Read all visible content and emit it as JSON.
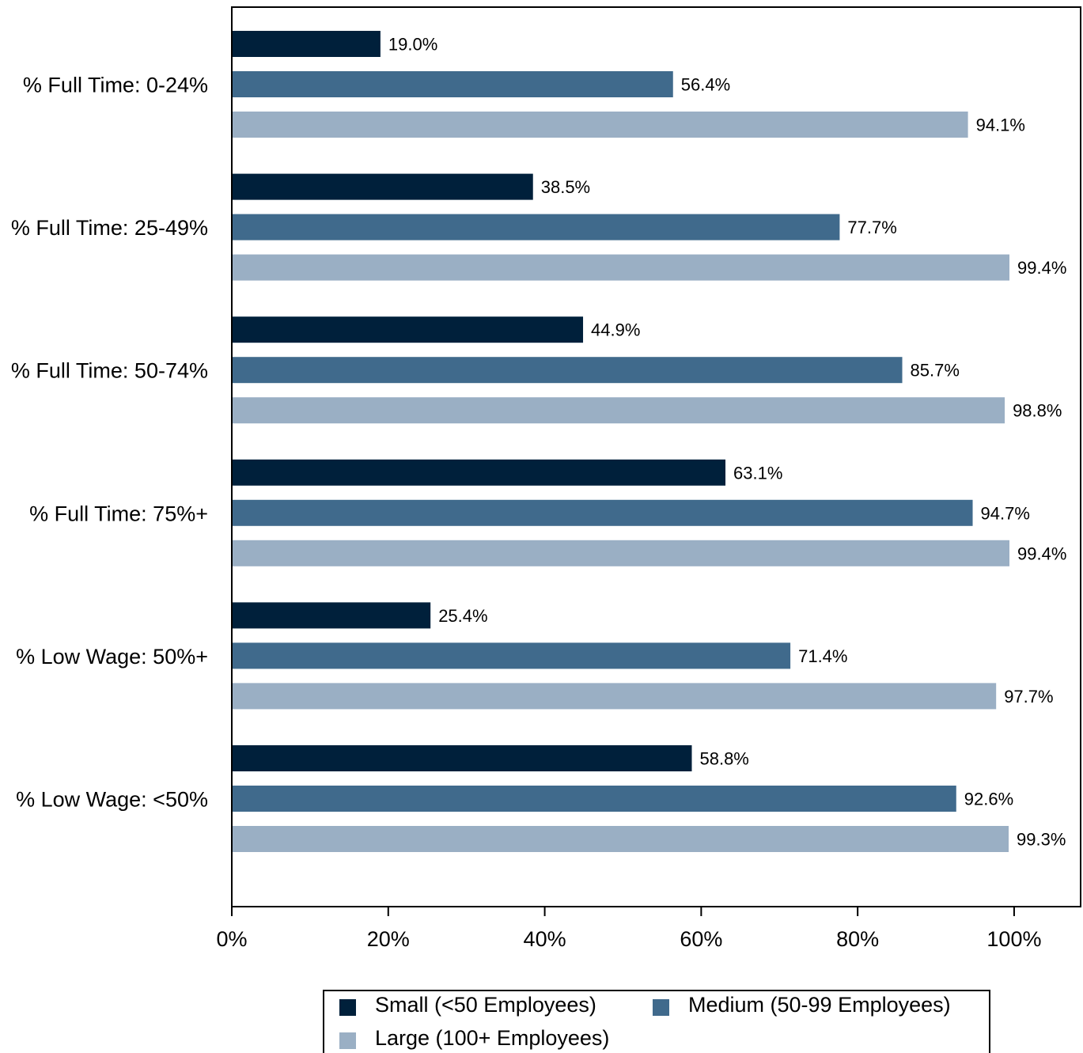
{
  "chart_data": {
    "type": "bar",
    "orientation": "horizontal",
    "categories": [
      "% Full Time: 0-24%",
      "% Full Time: 25-49%",
      "% Full Time: 50-74%",
      "% Full Time: 75%+",
      "% Low Wage: 50%+",
      "% Low Wage: <50%"
    ],
    "series": [
      {
        "name": "Small (<50 Employees)",
        "color": "#00203b",
        "values": [
          19.0,
          38.5,
          44.9,
          63.1,
          25.4,
          58.8
        ],
        "labels": [
          "19.0%",
          "38.5%",
          "44.9%",
          "63.1%",
          "25.4%",
          "58.8%"
        ]
      },
      {
        "name": "Medium (50-99 Employees)",
        "color": "#406a8c",
        "values": [
          56.4,
          77.7,
          85.7,
          94.7,
          71.4,
          92.6
        ],
        "labels": [
          "56.4%",
          "77.7%",
          "85.7%",
          "94.7%",
          "71.4%",
          "92.6%"
        ]
      },
      {
        "name": "Large (100+ Employees)",
        "color": "#9aafc4",
        "values": [
          94.1,
          99.4,
          98.8,
          99.4,
          97.7,
          99.3
        ],
        "labels": [
          "94.1%",
          "99.4%",
          "98.8%",
          "99.4%",
          "97.7%",
          "99.3%"
        ]
      }
    ],
    "xlim": [
      0,
      108.5
    ],
    "xticks": [
      0,
      20,
      40,
      60,
      80,
      100
    ],
    "xtick_labels": [
      "0%",
      "20%",
      "40%",
      "60%",
      "80%",
      "100%"
    ],
    "title": "",
    "xlabel": "",
    "ylabel": "",
    "grid": false,
    "legend_position": "bottom"
  }
}
